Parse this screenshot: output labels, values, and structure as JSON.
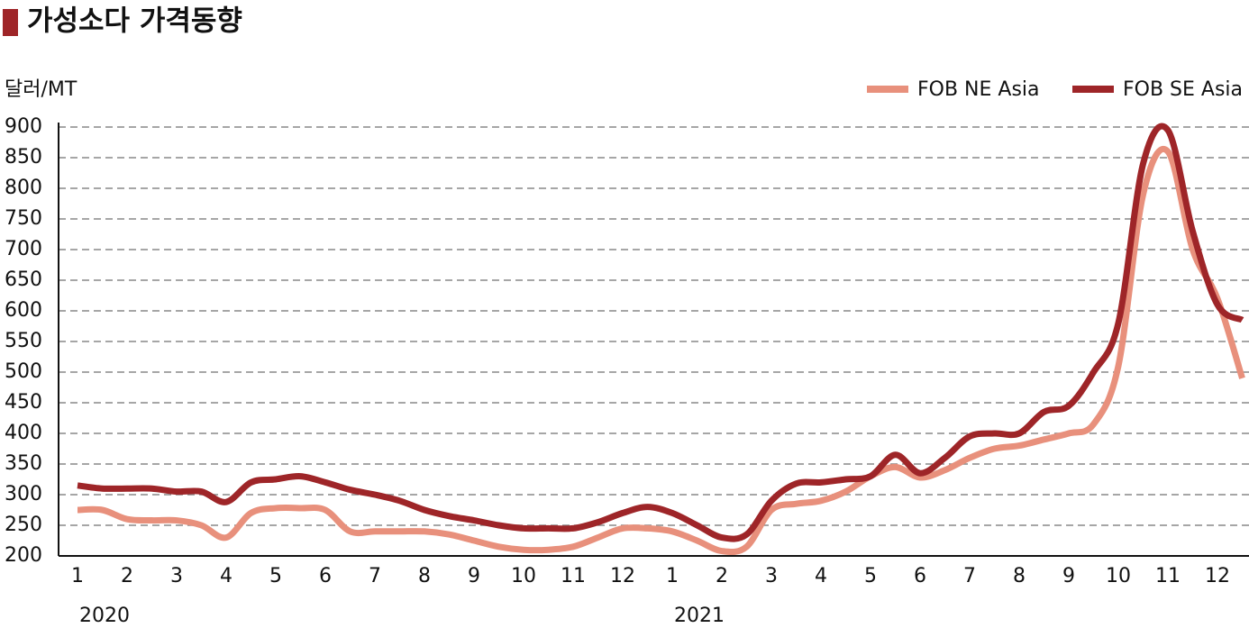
{
  "chart_data": {
    "type": "line",
    "title": "가성소다 가격동향",
    "y_label": "달러/MT",
    "categories": [
      "1",
      null,
      "2",
      null,
      "3",
      null,
      "4",
      null,
      "5",
      null,
      "6",
      null,
      "7",
      null,
      "8",
      null,
      "9",
      null,
      "10",
      null,
      "11",
      null,
      "12",
      null,
      "1",
      null,
      "2",
      null,
      "3",
      null,
      "4",
      null,
      "5",
      null,
      "6",
      null,
      "7",
      null,
      "8",
      null,
      "9",
      null,
      "10",
      null,
      "11",
      null,
      "12",
      null
    ],
    "x_group_labels": [
      "2020",
      "2021"
    ],
    "series": [
      {
        "name": "FOB NE Asia",
        "color": "#e8907c",
        "values": [
          275,
          275,
          260,
          258,
          258,
          250,
          230,
          270,
          278,
          278,
          275,
          240,
          240,
          240,
          240,
          235,
          225,
          215,
          210,
          210,
          215,
          230,
          245,
          245,
          240,
          225,
          208,
          215,
          275,
          285,
          290,
          305,
          330,
          345,
          328,
          340,
          360,
          375,
          380,
          390,
          400,
          415,
          510,
          790,
          860,
          700,
          620,
          490
        ]
      },
      {
        "name": "FOB SE Asia",
        "color": "#9e2528",
        "values": [
          315,
          310,
          310,
          310,
          305,
          305,
          288,
          320,
          325,
          330,
          320,
          308,
          300,
          290,
          275,
          265,
          258,
          250,
          245,
          245,
          245,
          255,
          270,
          280,
          270,
          250,
          230,
          235,
          290,
          318,
          320,
          325,
          330,
          365,
          335,
          360,
          395,
          400,
          400,
          435,
          445,
          500,
          580,
          840,
          895,
          730,
          610,
          585
        ]
      }
    ],
    "ylim": [
      200,
      900
    ],
    "yticks": [
      200,
      250,
      300,
      350,
      400,
      450,
      500,
      550,
      600,
      650,
      700,
      750,
      800,
      850,
      900
    ],
    "grid": true,
    "legend": "top-right"
  }
}
